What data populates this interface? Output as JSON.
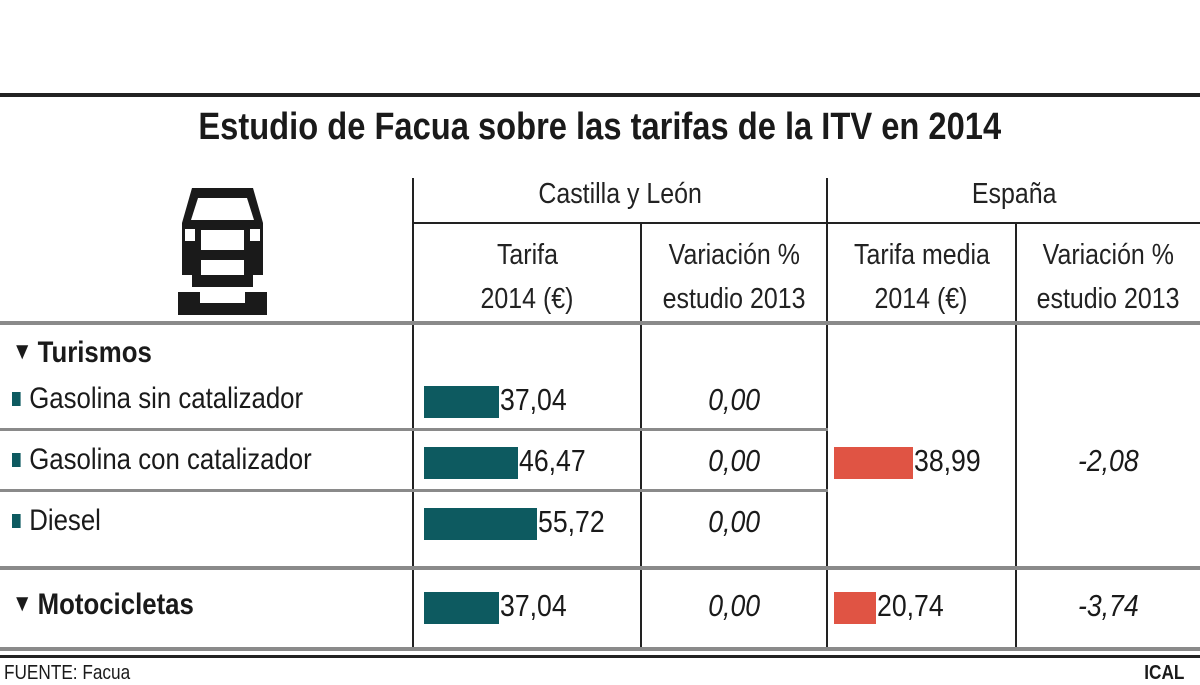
{
  "chart_data": {
    "type": "table",
    "title": "Estudio de Facua sobre las tarifas de la ITV en 2014",
    "groups": [
      {
        "label": "Castilla y León",
        "columns": [
          "Tarifa 2014 (€)",
          "Variación % estudio 2013"
        ]
      },
      {
        "label": "España",
        "columns": [
          "Tarifa media 2014 (€)",
          "Variación % estudio 2013"
        ]
      }
    ],
    "header": {
      "cyl": "Castilla y León",
      "esp": "España",
      "c1a": "Tarifa",
      "c1b": "2014 (€)",
      "c2a": "Variación %",
      "c2b": "estudio 2013",
      "c3a": "Tarifa media",
      "c3b": "2014 (€)",
      "c4a": "Variación %",
      "c4b": "estudio 2013"
    },
    "sections": [
      {
        "label": "Turismos",
        "rows": [
          {
            "label": "Gasolina sin catalizador",
            "tarifa": 37.04,
            "tarifa_text": "37,04",
            "variacion": "0,00"
          },
          {
            "label": "Gasolina con catalizador",
            "tarifa": 46.47,
            "tarifa_text": "46,47",
            "variacion": "0,00"
          },
          {
            "label": "Diesel",
            "tarifa": 55.72,
            "tarifa_text": "55,72",
            "variacion": "0,00"
          }
        ],
        "espana": {
          "tarifa": 38.99,
          "tarifa_text": "38,99",
          "variacion": "-2,08"
        }
      },
      {
        "label": "Motocicletas",
        "rows": [
          {
            "label": "Motocicletas",
            "tarifa": 37.04,
            "tarifa_text": "37,04",
            "variacion": "0,00"
          }
        ],
        "espana": {
          "tarifa": 20.74,
          "tarifa_text": "20,74",
          "variacion": "-3,74"
        }
      }
    ],
    "colors": {
      "castilla_bar": "#0d5a60",
      "espana_bar": "#e05444"
    },
    "icon": "car-front-icon"
  },
  "footer": {
    "source": "FUENTE: Facua",
    "credit": "ICAL"
  }
}
